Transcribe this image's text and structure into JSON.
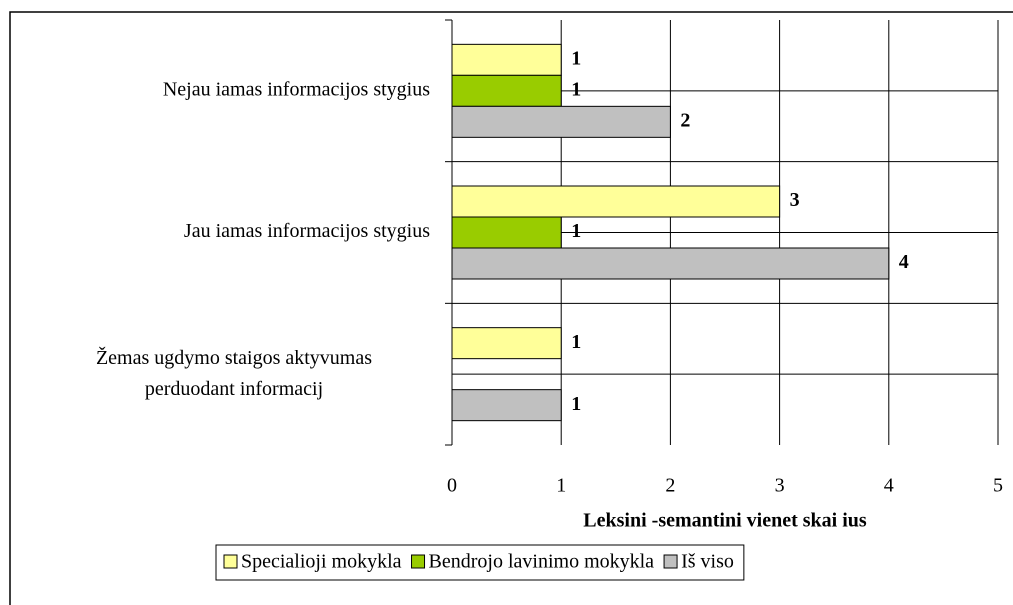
{
  "chart_data": {
    "type": "hbar",
    "categories": [
      "Nejau iamas informacijos stygius",
      "Jau iamas informacijos stygius",
      [
        "Žemas ugdymo  staigos aktyvumas",
        "perduodant informacij"
      ]
    ],
    "series": [
      {
        "name": "Specialioji mokykla",
        "color": "#ffff99",
        "values": [
          1,
          3,
          1
        ]
      },
      {
        "name": "Bendrojo lavinimo mokykla",
        "color": "#99cc00",
        "values": [
          1,
          1,
          null
        ]
      },
      {
        "name": "Iš viso",
        "color": "#c0c0c0",
        "values": [
          2,
          4,
          1
        ]
      }
    ],
    "x_label": "Leksini  -semantini  vienet  skai ius",
    "xlim": [
      0,
      5
    ],
    "xticks": [
      0,
      1,
      2,
      3,
      4,
      5
    ],
    "grid": true,
    "legend": "bottom"
  }
}
